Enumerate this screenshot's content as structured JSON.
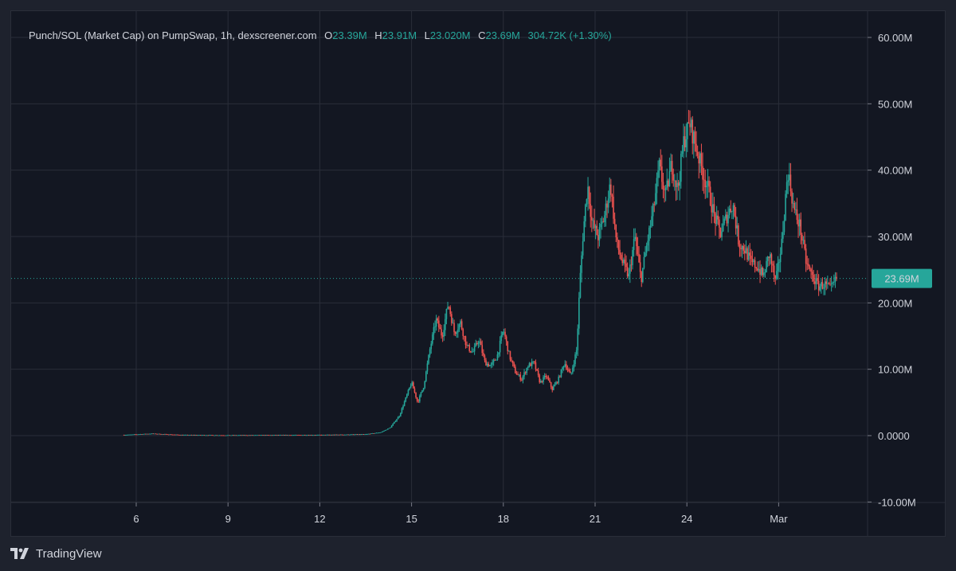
{
  "legend": {
    "symbol": "Punch/SOL (Market Cap) on PumpSwap, 1h, dexscreener.com",
    "open_label": "O",
    "open": "23.39M",
    "high_label": "H",
    "high": "23.91M",
    "low_label": "L",
    "low": "23.020M",
    "close_label": "C",
    "close": "23.69M",
    "change": "304.72K (+1.30%)"
  },
  "brand": {
    "name": "TradingView",
    "icon": "tradingview-logo-icon"
  },
  "colors": {
    "up": "#26a69a",
    "down": "#ef5350",
    "price_line": "#26a69a",
    "background": "#131722",
    "grid": "#2a2e39"
  },
  "chart_data": {
    "type": "candlestick",
    "title": "Punch/SOL (Market Cap) on PumpSwap, 1h, dexscreener.com",
    "interval": "1h",
    "x_unit": "day of February",
    "y_unit": "market cap (M)",
    "ylim": [
      -10,
      62
    ],
    "xlim": [
      3.5,
      28.5
    ],
    "y_ticks": [
      {
        "value": 60,
        "label": "60.00M"
      },
      {
        "value": 50,
        "label": "50.00M"
      },
      {
        "value": 40,
        "label": "40.00M"
      },
      {
        "value": 30,
        "label": "30.00M"
      },
      {
        "value": 20,
        "label": "20.00M"
      },
      {
        "value": 10,
        "label": "10.00M"
      },
      {
        "value": 0,
        "label": "0.0000"
      },
      {
        "value": -10,
        "label": "-10.00M"
      }
    ],
    "x_ticks": [
      {
        "value": 6,
        "label": "6"
      },
      {
        "value": 9,
        "label": "9"
      },
      {
        "value": 12,
        "label": "12"
      },
      {
        "value": 15,
        "label": "15"
      },
      {
        "value": 18,
        "label": "18"
      },
      {
        "value": 21,
        "label": "21"
      },
      {
        "value": 24,
        "label": "24"
      },
      {
        "value": 27,
        "label": "Mar"
      }
    ],
    "last_price": {
      "value": 23.69,
      "label": "23.69M"
    },
    "grid": true,
    "close_path": [
      [
        5.6,
        0.1
      ],
      [
        6.5,
        0.3
      ],
      [
        7.5,
        0.1
      ],
      [
        9,
        0.05
      ],
      [
        12,
        0.1
      ],
      [
        13.5,
        0.2
      ],
      [
        14.0,
        0.5
      ],
      [
        14.3,
        1.2
      ],
      [
        14.6,
        3.0
      ],
      [
        14.8,
        5.5
      ],
      [
        15.0,
        8.0
      ],
      [
        15.2,
        5.0
      ],
      [
        15.4,
        7.5
      ],
      [
        15.6,
        13.0
      ],
      [
        15.8,
        17.5
      ],
      [
        16.0,
        15.0
      ],
      [
        16.2,
        20.0
      ],
      [
        16.4,
        15.5
      ],
      [
        16.6,
        17.0
      ],
      [
        16.8,
        13.5
      ],
      [
        17.0,
        12.5
      ],
      [
        17.2,
        14.5
      ],
      [
        17.4,
        11.0
      ],
      [
        17.6,
        10.5
      ],
      [
        17.8,
        12.0
      ],
      [
        18.0,
        16.0
      ],
      [
        18.2,
        12.0
      ],
      [
        18.4,
        9.5
      ],
      [
        18.6,
        8.5
      ],
      [
        18.8,
        10.5
      ],
      [
        19.0,
        11.0
      ],
      [
        19.2,
        8.0
      ],
      [
        19.4,
        9.0
      ],
      [
        19.6,
        7.0
      ],
      [
        19.8,
        8.5
      ],
      [
        20.0,
        11.0
      ],
      [
        20.2,
        9.0
      ],
      [
        20.4,
        13.0
      ],
      [
        20.5,
        23.0
      ],
      [
        20.6,
        30.0
      ],
      [
        20.75,
        38.0
      ],
      [
        20.9,
        32.0
      ],
      [
        21.1,
        30.0
      ],
      [
        21.3,
        33.0
      ],
      [
        21.5,
        38.0
      ],
      [
        21.7,
        29.0
      ],
      [
        21.9,
        26.0
      ],
      [
        22.1,
        24.0
      ],
      [
        22.3,
        30.0
      ],
      [
        22.5,
        23.5
      ],
      [
        22.7,
        29.0
      ],
      [
        22.9,
        34.0
      ],
      [
        23.1,
        40.5
      ],
      [
        23.3,
        36.0
      ],
      [
        23.5,
        41.0
      ],
      [
        23.7,
        37.0
      ],
      [
        23.9,
        44.5
      ],
      [
        24.1,
        47.0
      ],
      [
        24.3,
        43.5
      ],
      [
        24.5,
        40.0
      ],
      [
        24.7,
        37.0
      ],
      [
        24.9,
        33.0
      ],
      [
        25.1,
        30.5
      ],
      [
        25.3,
        33.0
      ],
      [
        25.5,
        35.0
      ],
      [
        25.7,
        29.0
      ],
      [
        25.9,
        28.0
      ],
      [
        26.1,
        26.0
      ],
      [
        26.3,
        25.5
      ],
      [
        26.5,
        24.0
      ],
      [
        26.7,
        27.5
      ],
      [
        26.9,
        23.0
      ],
      [
        27.1,
        29.0
      ],
      [
        27.3,
        40.0
      ],
      [
        27.5,
        34.0
      ],
      [
        27.7,
        31.5
      ],
      [
        27.9,
        26.0
      ],
      [
        28.1,
        24.0
      ],
      [
        28.3,
        22.5
      ],
      [
        28.5,
        22.8
      ],
      [
        28.7,
        22.0
      ],
      [
        28.9,
        23.69
      ]
    ]
  }
}
